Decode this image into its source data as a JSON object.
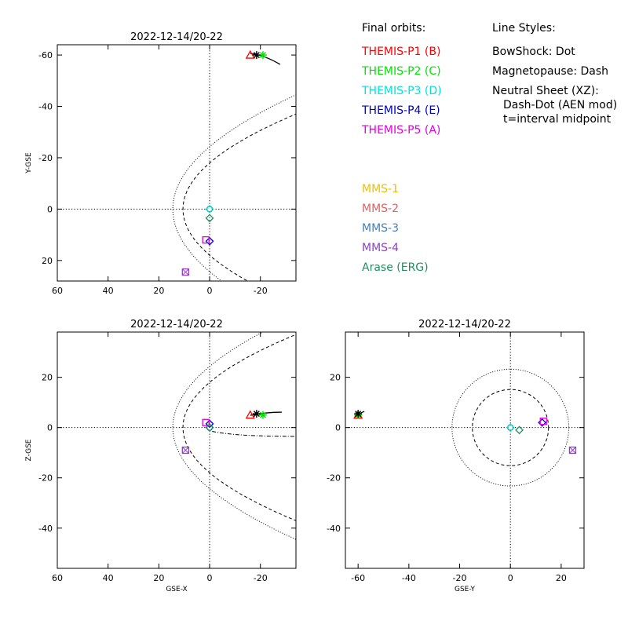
{
  "legend": {
    "orbits_heading": "Final orbits:",
    "styles_heading": "Line Styles:",
    "spacecraft": [
      {
        "label": "THEMIS-P1 (B)",
        "color": "#ff0000"
      },
      {
        "label": "THEMIS-P2 (C)",
        "color": "#00e000"
      },
      {
        "label": "THEMIS-P3 (D)",
        "color": "#00e0e0"
      },
      {
        "label": "THEMIS-P4 (E)",
        "color": "#0000c8"
      },
      {
        "label": "THEMIS-P5 (A)",
        "color": "#e000e0"
      }
    ],
    "mms": [
      {
        "label": "MMS-1",
        "color": "#f0c000"
      },
      {
        "label": "MMS-2",
        "color": "#e06060"
      },
      {
        "label": "MMS-3",
        "color": "#4080c0"
      },
      {
        "label": "MMS-4",
        "color": "#9040c0"
      },
      {
        "label": "Arase (ERG)",
        "color": "#209060"
      }
    ],
    "styles": [
      "BowShock: Dot",
      "Magnetopause: Dash",
      "Neutral Sheet (XZ):",
      "Dash-Dot (AEN mod)",
      "t=interval midpoint"
    ]
  },
  "chart_data": [
    {
      "type": "scatter",
      "title": "2022-12-14/20-22",
      "xlabel": "",
      "ylabel": "Y-GSE",
      "xlim": [
        60,
        -34
      ],
      "ylim": [
        28,
        -64
      ],
      "xticks": [
        60,
        40,
        20,
        0,
        -20
      ],
      "yticks": [
        -60,
        -40,
        -20,
        0,
        20
      ],
      "points": [
        {
          "name": "THEMIS-P1 (B)",
          "x": -16,
          "y": -60,
          "marker": "triangle",
          "color": "#ff0000"
        },
        {
          "name": "THEMIS-P2 (C)",
          "x": -21,
          "y": -60,
          "marker": "asterisk",
          "color": "#00e000"
        },
        {
          "name": "THEMIS-P3 (D)",
          "x": 0,
          "y": 0,
          "marker": "diamond",
          "color": "#00e0e0"
        },
        {
          "name": "THEMIS-P4 (E)",
          "x": 0,
          "y": 12.5,
          "marker": "diamond",
          "color": "#0000c8"
        },
        {
          "name": "THEMIS-P5 (A)",
          "x": 1.5,
          "y": 12,
          "marker": "square",
          "color": "#e000e0"
        },
        {
          "name": "MMS",
          "x": 9.5,
          "y": 24.5,
          "marker": "square-x",
          "color": "#9040c0"
        },
        {
          "name": "Arase (ERG)",
          "x": 0,
          "y": 3.5,
          "marker": "diamond",
          "color": "#209060"
        },
        {
          "name": "THEMIS-P1/P2 trace",
          "x": -18.5,
          "y": -60,
          "marker": "asterisk",
          "color": "#000000"
        }
      ]
    },
    {
      "type": "scatter",
      "title": "2022-12-14/20-22",
      "xlabel": "GSE-X",
      "ylabel": "Z-GSE",
      "xlim": [
        60,
        -34
      ],
      "ylim": [
        -56,
        38
      ],
      "xticks": [
        60,
        40,
        20,
        0,
        -20
      ],
      "yticks": [
        -40,
        -20,
        0,
        20
      ],
      "points": [
        {
          "name": "THEMIS-P1 (B)",
          "x": -16,
          "y": 5,
          "marker": "triangle",
          "color": "#ff0000"
        },
        {
          "name": "THEMIS-P2 (C)",
          "x": -21,
          "y": 5,
          "marker": "asterisk",
          "color": "#00e000"
        },
        {
          "name": "THEMIS-P3 (D)",
          "x": 0,
          "y": 0,
          "marker": "diamond",
          "color": "#00e0e0"
        },
        {
          "name": "THEMIS-P4 (E)",
          "x": 0,
          "y": 1.5,
          "marker": "diamond",
          "color": "#0000c8"
        },
        {
          "name": "THEMIS-P5 (A)",
          "x": 1.5,
          "y": 2,
          "marker": "square",
          "color": "#e000e0"
        },
        {
          "name": "MMS",
          "x": 9.5,
          "y": -9,
          "marker": "square-x",
          "color": "#9040c0"
        },
        {
          "name": "Arase (ERG)",
          "x": 0,
          "y": 0,
          "marker": "diamond",
          "color": "#209060"
        },
        {
          "name": "THEMIS-P1/P2 trace",
          "x": -18.5,
          "y": 5.5,
          "marker": "asterisk",
          "color": "#000000"
        }
      ]
    },
    {
      "type": "scatter",
      "title": "2022-12-14/20-22",
      "xlabel": "GSE-Y",
      "ylabel": "",
      "xlim": [
        -65,
        29
      ],
      "ylim": [
        -56,
        38
      ],
      "xticks": [
        -60,
        -40,
        -20,
        0,
        20
      ],
      "yticks": [
        -40,
        -20,
        0,
        20
      ],
      "points": [
        {
          "name": "THEMIS-P1 (B)",
          "x": -60,
          "y": 5,
          "marker": "triangle",
          "color": "#ff0000"
        },
        {
          "name": "THEMIS-P2 (C)",
          "x": -60,
          "y": 5,
          "marker": "asterisk",
          "color": "#00e000"
        },
        {
          "name": "THEMIS-P3 (D)",
          "x": 0,
          "y": 0,
          "marker": "diamond",
          "color": "#00e0e0"
        },
        {
          "name": "THEMIS-P4 (E)",
          "x": 12.5,
          "y": 2,
          "marker": "diamond",
          "color": "#0000c8"
        },
        {
          "name": "THEMIS-P5 (A)",
          "x": 13,
          "y": 2.5,
          "marker": "square",
          "color": "#e000e0"
        },
        {
          "name": "MMS",
          "x": 24.5,
          "y": -9,
          "marker": "square-x",
          "color": "#9040c0"
        },
        {
          "name": "Arase (ERG)",
          "x": 3.5,
          "y": -1,
          "marker": "diamond",
          "color": "#209060"
        },
        {
          "name": "THEMIS-P1/P2 trace",
          "x": -60,
          "y": 5.5,
          "marker": "asterisk",
          "color": "#000000"
        }
      ]
    }
  ]
}
